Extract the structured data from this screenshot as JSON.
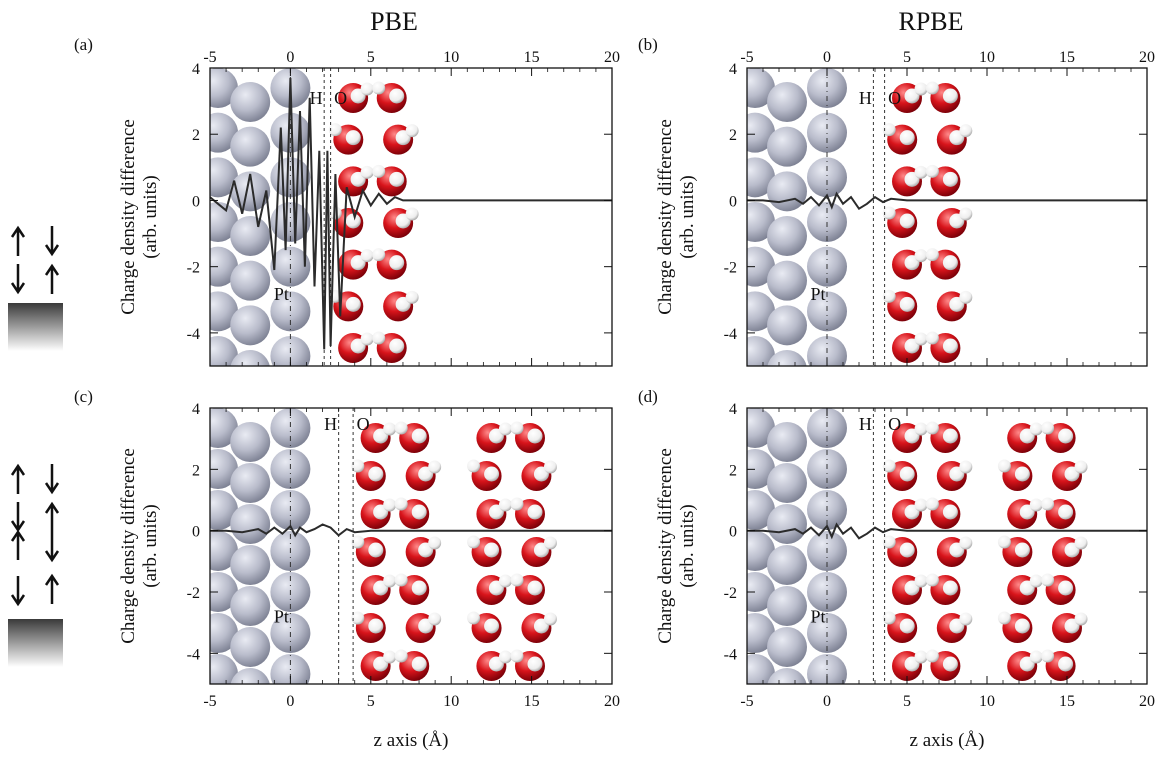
{
  "column_headers": [
    "PBE",
    "RPBE"
  ],
  "xlabel": "z axis (Å)",
  "ylabel_line1": "Charge density difference",
  "ylabel_line2": "(arb. units)",
  "x_ticks": [
    -5,
    0,
    5,
    10,
    15,
    20
  ],
  "y_ticks": [
    4,
    2,
    0,
    -2,
    -4
  ],
  "annotations": {
    "pt": "Pt",
    "h": "H",
    "o": "O"
  },
  "colors": {
    "pt_atom": "#b9bccb",
    "o_atom": "#d8141b",
    "h_atom": "#f4f4f4",
    "curve": "#2b2b2b",
    "box": "#111111"
  },
  "icons": [
    "spin-up-arrow-icon",
    "spin-down-arrow-icon",
    "pt-slab-gradient-icon"
  ],
  "chart_data": [
    {
      "type": "line",
      "panel": "(a)",
      "functional": "PBE",
      "xlim": [
        -5,
        20
      ],
      "ylim": [
        -5,
        4
      ],
      "vlines": [
        {
          "label": "Pt",
          "x": 0.0
        },
        {
          "label": "H",
          "x": 2.1
        },
        {
          "label": "O",
          "x": 2.5
        }
      ],
      "series": [
        {
          "x": [
            -5,
            -4.5,
            -4,
            -3.5,
            -3,
            -2.5,
            -2,
            -1.5,
            -1,
            -0.6,
            -0.3,
            0,
            0.3,
            0.6,
            0.9,
            1.2,
            1.5,
            1.8,
            2.1,
            2.3,
            2.5,
            2.8,
            3.1,
            3.5,
            4,
            4.5,
            5,
            5.5,
            6,
            6.5,
            7,
            8,
            10,
            14,
            20
          ],
          "y": [
            0.1,
            -0.1,
            -0.3,
            0.6,
            -0.4,
            0.8,
            -0.8,
            0.3,
            -2.1,
            2.2,
            -1.5,
            3.7,
            -1.3,
            2.7,
            -2.0,
            3.1,
            -2.6,
            1.5,
            -4.5,
            1.5,
            -4.4,
            0.8,
            -3.5,
            0.4,
            -0.5,
            0.3,
            -0.15,
            0.2,
            -0.1,
            0.1,
            0.0,
            0.0,
            0.0,
            0.0,
            0.0
          ]
        }
      ]
    },
    {
      "type": "line",
      "panel": "(b)",
      "functional": "RPBE",
      "xlim": [
        -5,
        20
      ],
      "ylim": [
        -5,
        4
      ],
      "vlines": [
        {
          "label": "Pt",
          "x": 0.0
        },
        {
          "label": "H",
          "x": 2.9
        },
        {
          "label": "O",
          "x": 3.6
        }
      ],
      "series": [
        {
          "x": [
            -5,
            -4,
            -3,
            -2,
            -1.5,
            -1,
            -0.5,
            0,
            0.3,
            0.6,
            1,
            1.5,
            2,
            2.5,
            3,
            3.5,
            4,
            5,
            6,
            8,
            12,
            20
          ],
          "y": [
            0.0,
            0.0,
            -0.05,
            0.05,
            -0.1,
            0.1,
            -0.15,
            0.15,
            -0.2,
            0.2,
            -0.1,
            0.1,
            -0.25,
            -0.1,
            0.1,
            -0.05,
            0.05,
            0.0,
            0.0,
            0.0,
            0.0,
            0.0
          ]
        }
      ]
    },
    {
      "type": "line",
      "panel": "(c)",
      "functional": "PBE",
      "xlim": [
        -5,
        20
      ],
      "ylim": [
        -5,
        4
      ],
      "vlines": [
        {
          "label": "Pt",
          "x": 0.0
        },
        {
          "label": "H",
          "x": 3.0
        },
        {
          "label": "O",
          "x": 3.9
        }
      ],
      "series": [
        {
          "x": [
            -5,
            -4,
            -3,
            -2,
            -1.5,
            -1,
            -0.5,
            0,
            0.3,
            0.6,
            1,
            1.5,
            2,
            2.5,
            3,
            3.5,
            4,
            5,
            6,
            8,
            12,
            20
          ],
          "y": [
            0.0,
            0.0,
            -0.05,
            0.05,
            -0.1,
            0.1,
            -0.1,
            0.15,
            -0.15,
            0.1,
            -0.05,
            0.05,
            0.2,
            0.1,
            -0.15,
            0.05,
            -0.05,
            0.0,
            0.0,
            0.0,
            0.0,
            0.0
          ]
        }
      ]
    },
    {
      "type": "line",
      "panel": "(d)",
      "functional": "RPBE",
      "xlim": [
        -5,
        20
      ],
      "ylim": [
        -5,
        4
      ],
      "vlines": [
        {
          "label": "Pt",
          "x": 0.0
        },
        {
          "label": "H",
          "x": 2.9
        },
        {
          "label": "O",
          "x": 3.6
        }
      ],
      "series": [
        {
          "x": [
            -5,
            -4,
            -3,
            -2,
            -1.5,
            -1,
            -0.5,
            0,
            0.3,
            0.6,
            1,
            1.5,
            2,
            2.5,
            3,
            3.5,
            4,
            5,
            6,
            8,
            12,
            20
          ],
          "y": [
            0.0,
            0.0,
            -0.05,
            0.05,
            -0.1,
            0.1,
            -0.15,
            0.15,
            -0.2,
            0.2,
            -0.1,
            0.1,
            -0.25,
            -0.1,
            0.1,
            -0.05,
            0.05,
            0.0,
            0.0,
            0.0,
            0.0,
            0.0
          ]
        }
      ]
    }
  ]
}
